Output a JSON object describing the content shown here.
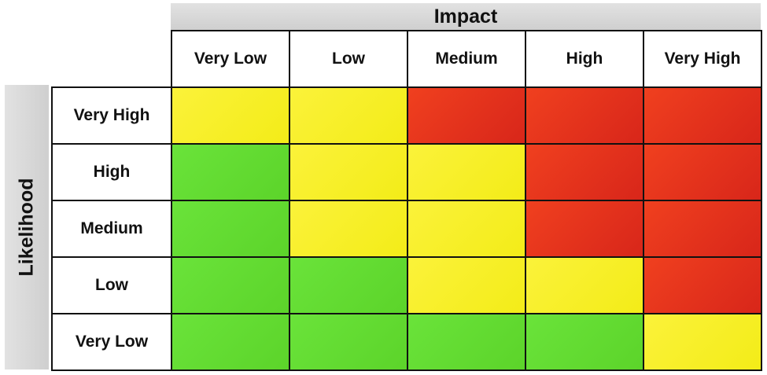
{
  "impact_title": "Impact",
  "likelihood_title": "Likelihood",
  "columns": [
    "Very Low",
    "Low",
    "Medium",
    "High",
    "Very High"
  ],
  "rows": [
    {
      "label": "Very High",
      "cells": [
        "yellow",
        "yellow",
        "red",
        "red",
        "red"
      ]
    },
    {
      "label": "High",
      "cells": [
        "green",
        "yellow",
        "yellow",
        "red",
        "red"
      ]
    },
    {
      "label": "Medium",
      "cells": [
        "green",
        "yellow",
        "yellow",
        "red",
        "red"
      ]
    },
    {
      "label": "Low",
      "cells": [
        "green",
        "green",
        "yellow",
        "yellow",
        "red"
      ]
    },
    {
      "label": "Very Low",
      "cells": [
        "green",
        "green",
        "green",
        "green",
        "yellow"
      ]
    }
  ],
  "colors": {
    "green": "#5cd42a",
    "yellow": "#f5ee1c",
    "red": "#e0301c"
  }
}
